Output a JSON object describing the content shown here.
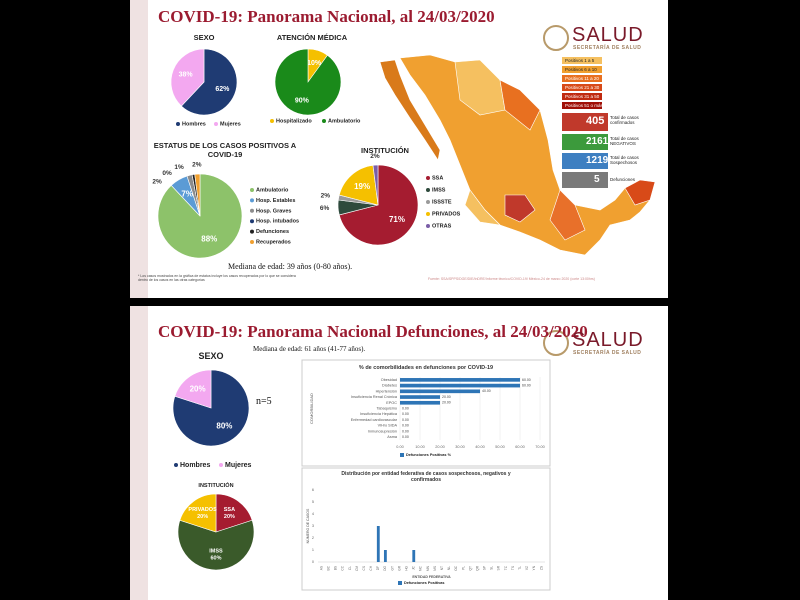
{
  "slides": [
    {
      "title": "COVID-19: Panorama Nacional, al 24/03/2020",
      "logo": {
        "name": "SALUD",
        "subtitle": "SECRETARÍA DE SALUD"
      },
      "median": "Mediana de edad: 39 años (0-80 años).",
      "footnote": "* Los casos mostrados en la gráfica de estatus incluye los casos recuperados por lo que se considera dentro de los casos en las otras categorías",
      "source": "Fuente: SSA/SPPS/DGE/DIE/InDRE/Informe técnico/COVID-19/ México-24 de marzo 2020 (corte 13:00hrs)",
      "map_legend": [
        "Positivos 1 a 5",
        "Positivos 6 a 10",
        "Positivos 11 a 20",
        "Positivos 21 a 30",
        "Positivos 31 a 50",
        "Positivos 51 o más"
      ],
      "stats": [
        {
          "value": 405,
          "label": "Total de casos confirmados"
        },
        {
          "value": 2161,
          "label": "Total de casos NEGATIVOS"
        },
        {
          "value": 1219,
          "label": "Total de casos Sospechosos"
        },
        {
          "value": 5,
          "label": "Defunciones"
        }
      ]
    },
    {
      "title": "COVID-19: Panorama Nacional Defunciones, al 24/03/2020",
      "logo": {
        "name": "SALUD",
        "subtitle": "SECRETARÍA DE SALUD"
      },
      "median": "Mediana de edad: 61 años (41-77 años).",
      "note": "n=5"
    }
  ],
  "chart_data": [
    {
      "type": "pie",
      "title": "SEXO",
      "categories": [
        "Hombres",
        "Mujeres"
      ],
      "values": [
        62,
        38
      ],
      "value_labels": [
        "62%",
        "38%"
      ],
      "colors": [
        "#1f3b73",
        "#f3a8f0"
      ],
      "legend": "bottom"
    },
    {
      "type": "pie",
      "title": "ATENCIÓN MÉDICA",
      "categories": [
        "Hospitalizado",
        "Ambulatorio"
      ],
      "values": [
        10,
        90
      ],
      "value_labels": [
        "10%",
        "90%"
      ],
      "colors": [
        "#f5c000",
        "#1a8a1a"
      ],
      "legend": "bottom"
    },
    {
      "type": "pie",
      "title": "ESTATUS DE LOS CASOS POSITIVOS A COVID-19",
      "categories": [
        "Ambulatorio",
        "Hosp. Estables",
        "Hosp. Graves",
        "Hosp. intubados",
        "Defunciones",
        "Recuperados"
      ],
      "values": [
        88,
        7,
        2,
        0,
        1,
        2
      ],
      "value_labels": [
        "88%",
        "7%",
        "2%",
        "0%",
        "1%",
        "2%"
      ],
      "colors": [
        "#8dc26a",
        "#5b9bd5",
        "#8c8c8c",
        "#1f3b73",
        "#222222",
        "#f0a030"
      ],
      "legend": "right"
    },
    {
      "type": "pie",
      "title": "INSTITUCIÓN",
      "categories": [
        "SSA",
        "IMSS",
        "ISSSTE",
        "PRIVADOS",
        "OTRAS"
      ],
      "values": [
        71,
        6,
        2,
        19,
        2
      ],
      "value_labels": [
        "71%",
        "6%",
        "2%",
        "19%",
        "2%"
      ],
      "colors": [
        "#a51c30",
        "#2e4a3c",
        "#9a9a9a",
        "#f5c000",
        "#7b5ea7"
      ],
      "legend": "right"
    },
    {
      "type": "pie",
      "title": "SEXO",
      "categories": [
        "Hombres",
        "Mujeres"
      ],
      "values": [
        80,
        20
      ],
      "value_labels": [
        "80%",
        "20%"
      ],
      "colors": [
        "#1f3b73",
        "#f3a8f0"
      ],
      "legend": "bottom"
    },
    {
      "type": "pie",
      "title": "INSTITUCIÓN",
      "categories": [
        "SSA",
        "IMSS",
        "PRIVADOS"
      ],
      "values": [
        20,
        60,
        20
      ],
      "value_labels": [
        "20%",
        "60%",
        "20%"
      ],
      "colors": [
        "#a51c30",
        "#3a5a2a",
        "#f5c000"
      ],
      "label_names": true
    },
    {
      "type": "hbar",
      "title": "% de comorbilidades en defunciones por COVID-19",
      "ylabel": "COMORBILIDAD",
      "categories": [
        "Obesidad",
        "Diabetes",
        "Hipertensión",
        "Insuficiencia Renal Crónica",
        "EPOC",
        "Tabaquismo",
        "Insuficiencia Hepática",
        "Enfermedad cardiovascular",
        "VIH/o SIDA",
        "Inmunosupresión",
        "Asma"
      ],
      "series": [
        {
          "name": "Defunciones Positivas %",
          "color": "#2e75b6",
          "values": [
            60,
            60,
            40,
            20,
            20,
            0,
            0,
            0,
            0,
            0,
            0
          ],
          "value_labels": [
            "60.00",
            "60.00",
            "40.00",
            "20.00",
            "20.00",
            "0.00",
            "0.00",
            "0.00",
            "0.00",
            "0.00",
            "0.00"
          ]
        }
      ],
      "xlim": [
        0,
        70
      ],
      "xticks": [
        {
          "value": 0,
          "label": "0.00"
        },
        {
          "value": 10,
          "label": "10.00"
        },
        {
          "value": 20,
          "label": "20.00"
        },
        {
          "value": 30,
          "label": "30.00"
        },
        {
          "value": 40,
          "label": "40.00"
        },
        {
          "value": 50,
          "label": "50.00"
        },
        {
          "value": 60,
          "label": "60.00"
        },
        {
          "value": 70,
          "label": "70.00"
        }
      ],
      "grid": true
    },
    {
      "type": "bar",
      "title": "Distribución por entidad federativa de casos sospechosos, negativos y confirmados",
      "xlabel": "ENTIDAD FEDERATIVA",
      "ylabel": "NÚMERO DE CASOS",
      "categories": [
        "AS",
        "BC",
        "BS",
        "CC",
        "CL",
        "CM",
        "CS",
        "CH",
        "DF",
        "DG",
        "GT",
        "GR",
        "HG",
        "JC",
        "MC",
        "MN",
        "MS",
        "NT",
        "NL",
        "OC",
        "PL",
        "QT",
        "QR",
        "SP",
        "SL",
        "SR",
        "TC",
        "TS",
        "TL",
        "VZ",
        "YN",
        "ZS"
      ],
      "series": [
        {
          "name": "Defunciones Positivas",
          "color": "#2e75b6",
          "values": [
            0,
            0,
            0,
            0,
            0,
            0,
            0,
            0,
            3,
            1,
            0,
            0,
            0,
            1,
            0,
            0,
            0,
            0,
            0,
            0,
            0,
            0,
            0,
            0,
            0,
            0,
            0,
            0,
            0,
            0,
            0,
            0
          ]
        }
      ],
      "ylim": [
        0,
        6
      ],
      "yticks": [
        0,
        1,
        2,
        3,
        4,
        5,
        6
      ],
      "grid": false
    }
  ]
}
